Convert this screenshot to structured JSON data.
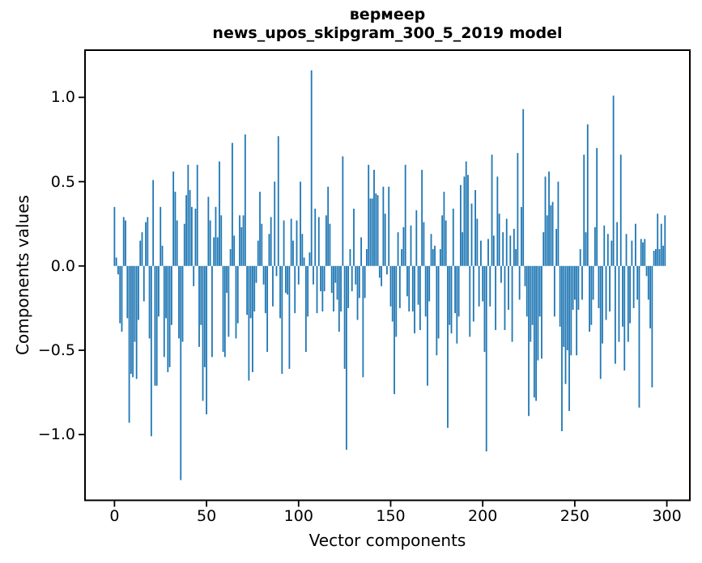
{
  "figure": {
    "title_line1": "вермеер",
    "title_line2": "news_upos_skipgram_300_5_2019 model"
  },
  "chart_data": {
    "type": "bar",
    "title": "вермеер\nnews_upos_skipgram_300_5_2019 model",
    "word": "вермеер",
    "model": "news_upos_skipgram_300_5_2019",
    "xlabel": "Vector components",
    "ylabel": "Components values",
    "grid": false,
    "legend_position": "none",
    "background": "#ffffff",
    "bar_color": "#1f77b4",
    "frame_color": "#000000",
    "text_color": "#000000",
    "n_components": 300,
    "xlim": [
      -16,
      312.5
    ],
    "ylim": [
      -1.39,
      1.28
    ],
    "xticks": [
      0,
      50,
      100,
      150,
      200,
      250,
      300
    ],
    "yticks": [
      1.0,
      0.5,
      0.0,
      -0.5,
      -1.0
    ],
    "values": [
      0.35,
      0.05,
      -0.05,
      -0.34,
      -0.39,
      0.29,
      0.27,
      -0.31,
      -0.93,
      -0.64,
      -0.66,
      -0.45,
      -0.67,
      -0.32,
      0.15,
      0.2,
      -0.21,
      0.26,
      0.29,
      -0.43,
      -1.01,
      0.51,
      -0.71,
      -0.71,
      -0.3,
      0.35,
      0.12,
      -0.54,
      -0.31,
      -0.63,
      -0.6,
      -0.35,
      0.56,
      0.44,
      0.27,
      -0.43,
      -1.27,
      -0.45,
      0.25,
      0.42,
      0.6,
      0.45,
      0.35,
      -0.12,
      0.34,
      0.6,
      -0.48,
      -0.35,
      -0.8,
      -0.6,
      -0.88,
      0.41,
      0.27,
      -0.54,
      0.17,
      0.35,
      0.17,
      0.62,
      0.3,
      -0.51,
      -0.54,
      -0.16,
      -0.42,
      0.1,
      0.73,
      0.18,
      -0.43,
      -0.34,
      0.3,
      0.23,
      0.3,
      0.78,
      -0.29,
      -0.68,
      -0.31,
      -0.63,
      -0.27,
      -0.1,
      0.15,
      0.44,
      0.25,
      -0.11,
      -0.28,
      -0.51,
      0.19,
      0.29,
      -0.24,
      0.5,
      -0.06,
      0.77,
      -0.31,
      -0.64,
      0.27,
      -0.16,
      -0.17,
      -0.61,
      0.28,
      0.15,
      -0.28,
      0.27,
      -0.11,
      0.5,
      0.19,
      0.05,
      -0.51,
      -0.3,
      0.08,
      1.16,
      -0.11,
      0.34,
      -0.28,
      0.29,
      -0.15,
      -0.27,
      -0.15,
      0.3,
      0.47,
      0.25,
      -0.16,
      -0.27,
      -0.1,
      -0.2,
      -0.39,
      -0.27,
      0.65,
      -0.61,
      -1.09,
      -0.25,
      0.1,
      -0.15,
      0.34,
      -0.11,
      -0.32,
      -0.19,
      0.17,
      -0.66,
      -0.19,
      0.1,
      0.6,
      0.4,
      0.4,
      0.57,
      0.43,
      0.42,
      -0.07,
      -0.12,
      0.47,
      0.31,
      -0.05,
      0.47,
      -0.24,
      -0.33,
      -0.76,
      -0.42,
      0.2,
      -0.25,
      0.1,
      0.23,
      0.6,
      -0.18,
      -0.27,
      0.24,
      -0.27,
      -0.4,
      0.33,
      -0.23,
      -0.38,
      0.57,
      0.26,
      -0.3,
      -0.71,
      -0.21,
      0.19,
      0.1,
      0.12,
      -0.53,
      -0.43,
      0.1,
      0.3,
      0.44,
      0.27,
      -0.96,
      -0.35,
      -0.4,
      0.34,
      -0.28,
      -0.46,
      -0.3,
      0.48,
      0.2,
      0.53,
      0.62,
      0.54,
      -0.42,
      0.37,
      -0.33,
      0.45,
      0.28,
      -0.24,
      0.15,
      -0.21,
      -0.51,
      -1.1,
      0.16,
      -0.24,
      0.66,
      0.18,
      -0.38,
      0.53,
      0.31,
      -0.1,
      0.2,
      -0.38,
      0.28,
      -0.26,
      0.18,
      -0.45,
      0.22,
      0.1,
      0.67,
      -0.2,
      0.35,
      0.93,
      -0.12,
      -0.3,
      -0.89,
      -0.45,
      -0.35,
      -0.78,
      -0.8,
      -0.56,
      -0.3,
      -0.55,
      0.2,
      0.53,
      0.3,
      0.56,
      0.36,
      0.38,
      -0.3,
      0.22,
      0.5,
      -0.36,
      -0.98,
      -0.48,
      -0.7,
      -0.5,
      -0.86,
      -0.53,
      -0.26,
      -0.2,
      -0.53,
      -0.26,
      0.1,
      -0.2,
      0.66,
      0.2,
      0.84,
      -0.39,
      -0.35,
      -0.2,
      0.23,
      0.7,
      -0.25,
      -0.67,
      -0.46,
      0.24,
      -0.32,
      0.19,
      -0.27,
      0.15,
      1.01,
      -0.58,
      0.26,
      -0.45,
      0.66,
      -0.36,
      -0.62,
      0.19,
      -0.45,
      -0.34,
      0.15,
      -0.25,
      0.25,
      -0.2,
      -0.84,
      0.16,
      0.14,
      0.16,
      -0.06,
      -0.2,
      -0.37,
      -0.72,
      0.09,
      0.1,
      0.31,
      0.1,
      0.25,
      0.12,
      0.3
    ]
  }
}
